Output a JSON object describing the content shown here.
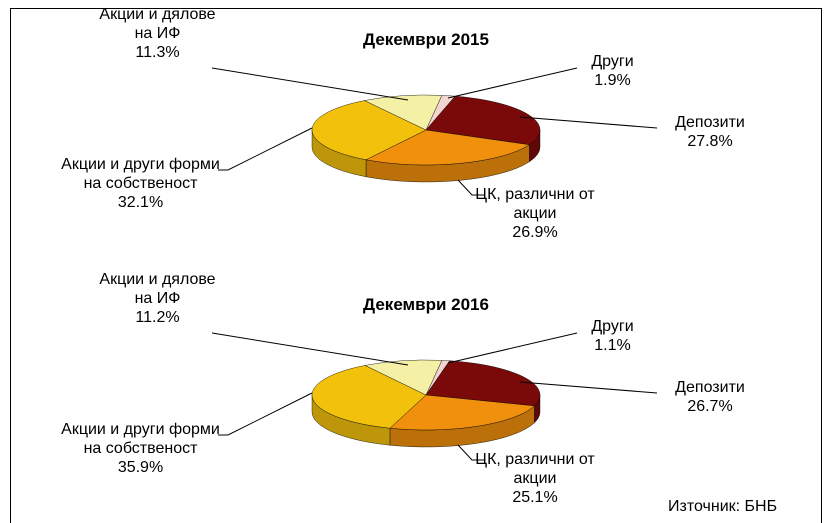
{
  "chart_data": [
    {
      "type": "pie",
      "title": "Декември 2015",
      "categories": [
        "Други",
        "Депозити",
        "ЦК, различни от акции",
        "Акции и други форми на собственост",
        "Акции и дялове на ИФ"
      ],
      "values": [
        1.9,
        27.8,
        26.9,
        32.1,
        11.3
      ],
      "value_labels": [
        "1.9%",
        "27.8%",
        "26.9%",
        "32.1%",
        "11.3%"
      ],
      "colors": [
        "#f2d4d0",
        "#7a0a0a",
        "#f0900c",
        "#f2c10c",
        "#f4f0a6"
      ]
    },
    {
      "type": "pie",
      "title": "Декември 2016",
      "categories": [
        "Други",
        "Депозити",
        "ЦК, различни от акции",
        "Акции и други форми на собственост",
        "Акции и дялове на ИФ"
      ],
      "values": [
        1.1,
        26.7,
        25.1,
        35.9,
        11.2
      ],
      "value_labels": [
        "1.1%",
        "26.7%",
        "25.1%",
        "35.9%",
        "11.2%"
      ],
      "colors": [
        "#f2d4d0",
        "#7a0a0a",
        "#f0900c",
        "#f2c10c",
        "#f4f0a6"
      ]
    }
  ],
  "source": "Източник: БНБ"
}
